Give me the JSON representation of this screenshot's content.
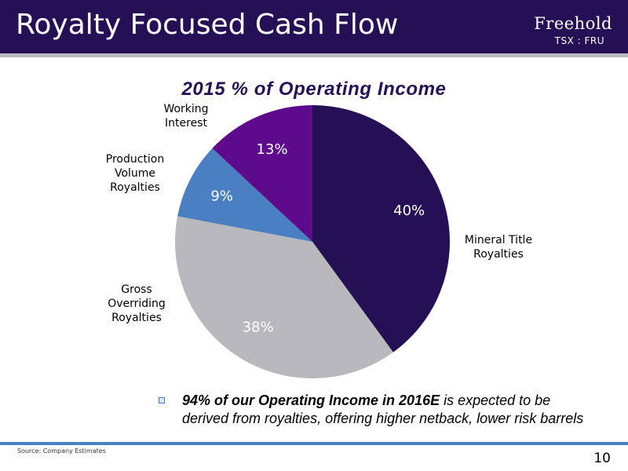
{
  "slide": {
    "title": "Royalty Focused Cash Flow",
    "brand": "Freehold",
    "ticker": "TSX : FRU",
    "bullet": {
      "bold_text": "94% of our Operating Income in 2016E",
      "rest_text": " is expected to be derived from royalties, offering higher netback, lower risk barrels"
    },
    "source": "Source:  Company Estimates",
    "page_number": "10"
  },
  "chart_data": {
    "type": "pie",
    "title": "2015 % of Operating Income",
    "slices": [
      {
        "label": "Mineral Title\nRoyalties",
        "value": 40,
        "display": "40%",
        "color": "#261055",
        "label_color": "#ffffff"
      },
      {
        "label": "Gross\nOverriding\nRoyalties",
        "value": 38,
        "display": "38%",
        "color": "#b9b9bd",
        "label_color": "#ffffff"
      },
      {
        "label": "Production\nVolume\nRoyalties",
        "value": 9,
        "display": "9%",
        "color": "#4a7fc1",
        "label_color": "#ffffff"
      },
      {
        "label": "Working\nInterest",
        "value": 13,
        "display": "13%",
        "color": "#5e0a8c",
        "label_color": "#ffffff"
      }
    ],
    "legend": "none"
  }
}
